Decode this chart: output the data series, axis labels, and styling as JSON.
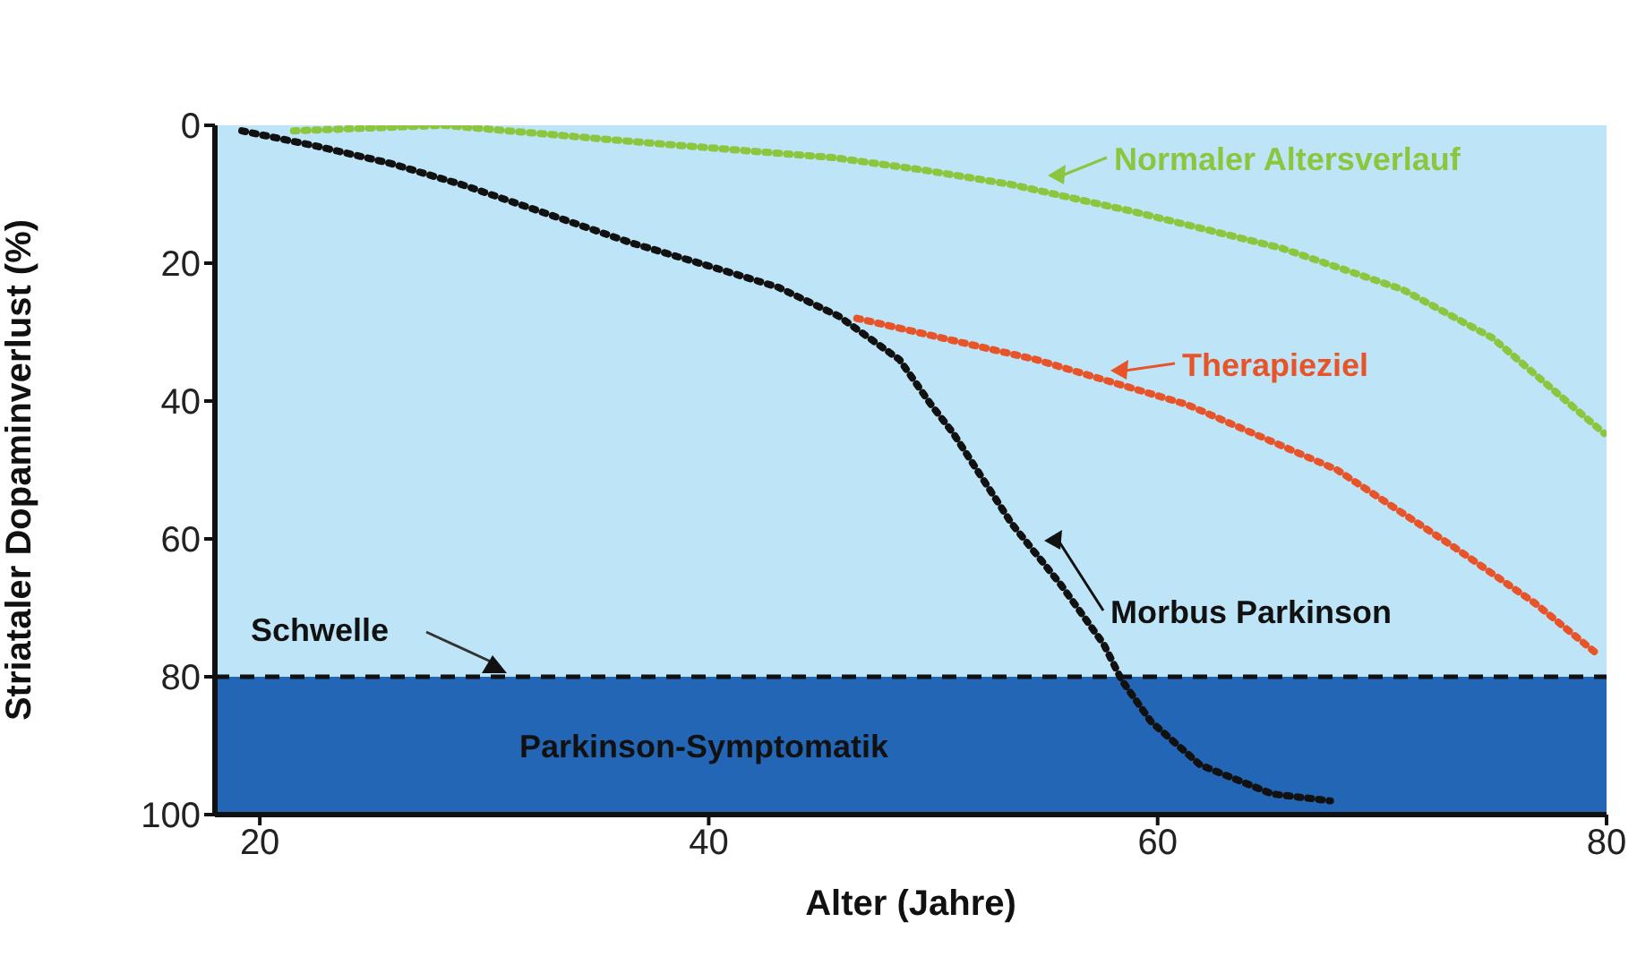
{
  "chart_data": {
    "type": "line",
    "xlabel": "Alter (Jahre)",
    "ylabel": "Striataler Dopaminverlust (%)",
    "xlim": [
      18,
      80
    ],
    "xticks": [
      20,
      40,
      60,
      80
    ],
    "ylim": [
      100,
      0
    ],
    "yticks": [
      0,
      20,
      40,
      60,
      80,
      100
    ],
    "line_style": "dotted",
    "marker": "none",
    "legend": "top right",
    "series": [
      {
        "name": "Normaler Altersverlauf",
        "color": "#8cc63f",
        "x": [
          21.5,
          28.2,
          37.5,
          45.6,
          49.6,
          53.5,
          58.9,
          65.5,
          70.9,
          74.9,
          79.9
        ],
        "values": [
          0.8,
          0,
          2.6,
          4.7,
          6.5,
          8.6,
          12.5,
          17.8,
          23.8,
          30.8,
          44.7
        ]
      },
      {
        "name": "Therapieziel",
        "color": "#e8542a",
        "x": [
          46.6,
          54.6,
          61.3,
          68,
          73.3,
          76.8,
          79.7
        ],
        "values": [
          28,
          34,
          40.5,
          50,
          61.4,
          69.3,
          77
        ]
      },
      {
        "name": "Morbus Parkinson",
        "color": "#111111",
        "x": [
          19.2,
          22.5,
          25.8,
          29,
          32.5,
          36.5,
          40,
          43.1,
          45.8,
          48.5,
          49.9,
          50.9,
          53.5,
          55.7,
          57.6,
          58.4,
          59.7,
          61.9,
          65.1,
          67.7
        ],
        "values": [
          0.8,
          3,
          5.5,
          8.6,
          12.5,
          17,
          20.4,
          23.5,
          27.7,
          34,
          40.5,
          44.7,
          57.8,
          66.7,
          75.3,
          80.5,
          86.5,
          92.8,
          97,
          98
        ]
      }
    ],
    "bands": [
      {
        "axis": "y",
        "from": 0,
        "to": 80,
        "color": "#bde5f7"
      },
      {
        "axis": "y",
        "from": 80,
        "to": 100,
        "label": "Parkinson-Symptomatik",
        "color": "#2366b5"
      }
    ],
    "ref_lines": [
      {
        "axis": "y",
        "value": 80,
        "label": "Schwelle",
        "color": "#111111",
        "line_style": "dashed"
      }
    ]
  }
}
